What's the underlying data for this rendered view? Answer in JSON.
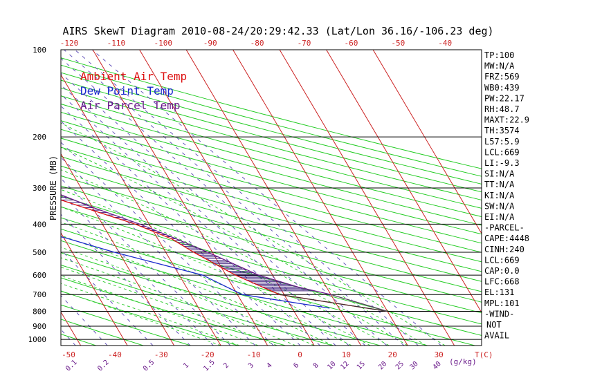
{
  "chart_data": {
    "type": "skew-t",
    "title": "AIRS SkewT Diagram 2010-08-24/20:29:42.33 (Lat/Lon 36.16/-106.23 deg)",
    "ylabel": "PRESSURE (MB)",
    "x_unit_label": "T(C)",
    "w_unit_label": "(g/kg)",
    "pressure_ticks": [
      100,
      200,
      300,
      400,
      500,
      600,
      700,
      800,
      900,
      1000
    ],
    "top_temp_ticks": [
      -120,
      -110,
      -100,
      -90,
      -80,
      -70,
      -60,
      -50,
      -40
    ],
    "bottom_temp_ticks": [
      -50,
      -40,
      -30,
      -20,
      -10,
      0,
      10,
      20,
      30
    ],
    "mixing_ratio_ticks": [
      "0.1",
      "0.2",
      "0.5",
      "1",
      "1.5",
      "2",
      "3",
      "4",
      "6",
      "8",
      "10",
      "12",
      "15",
      "20",
      "25",
      "30",
      "40"
    ],
    "legend": [
      {
        "label": "Ambient Air Temp",
        "color": "#dd1111"
      },
      {
        "label": "Dew Point Temp",
        "color": "#1a2acc"
      },
      {
        "label": "Air Parcel Temp",
        "color": "#6a1a8a"
      }
    ],
    "colors": {
      "isotherm": "#cc2222",
      "dry_adiabat": "#22cc22",
      "moist_adiabat": "#33cc33",
      "mixing_ratio": "#6655bb",
      "hatch": "#3a1a7a"
    },
    "series": [
      {
        "name": "Ambient Air Temp",
        "points": [
          [
            100,
            -73
          ],
          [
            150,
            -68
          ],
          [
            165,
            -61
          ],
          [
            200,
            -54
          ],
          [
            250,
            -44
          ],
          [
            300,
            -32
          ],
          [
            350,
            -22
          ],
          [
            400,
            -13
          ],
          [
            450,
            -7
          ],
          [
            500,
            -4
          ],
          [
            600,
            2
          ],
          [
            700,
            9
          ],
          [
            800,
            30
          ]
        ]
      },
      {
        "name": "Dew Point Temp",
        "points": [
          [
            100,
            -86
          ],
          [
            160,
            -69
          ],
          [
            200,
            -62
          ],
          [
            250,
            -52
          ],
          [
            300,
            -46
          ],
          [
            350,
            -42
          ],
          [
            400,
            -39
          ],
          [
            450,
            -29
          ],
          [
            500,
            -21
          ],
          [
            600,
            -5
          ],
          [
            700,
            1
          ],
          [
            780,
            18
          ]
        ]
      },
      {
        "name": "Air Parcel Temp",
        "points": [
          [
            100,
            -78
          ],
          [
            150,
            -66
          ],
          [
            200,
            -51
          ],
          [
            250,
            -38
          ],
          [
            300,
            -28
          ],
          [
            350,
            -20
          ],
          [
            400,
            -12
          ],
          [
            450,
            -6
          ],
          [
            500,
            -1
          ],
          [
            600,
            7
          ],
          [
            660,
            14
          ],
          [
            700,
            20
          ],
          [
            800,
            30
          ]
        ]
      }
    ],
    "stats": [
      "TP:100",
      "MW:N/A",
      "FRZ:569",
      "WB0:439",
      "PW:22.17",
      "RH:48.7",
      "MAXT:22.9",
      "TH:3574",
      "L57:5.9",
      "LCL:669",
      "LI:-9.3",
      "SI:N/A",
      "TT:N/A",
      "KI:N/A",
      "SW:N/A",
      "EI:N/A",
      "-PARCEL-",
      "CAPE:4448",
      "CINH:240",
      "LCL:669",
      "CAP:0.0",
      "LFC:668",
      "EL:131",
      "MPL:101",
      "-WIND-",
      "NOT",
      "AVAIL"
    ]
  }
}
